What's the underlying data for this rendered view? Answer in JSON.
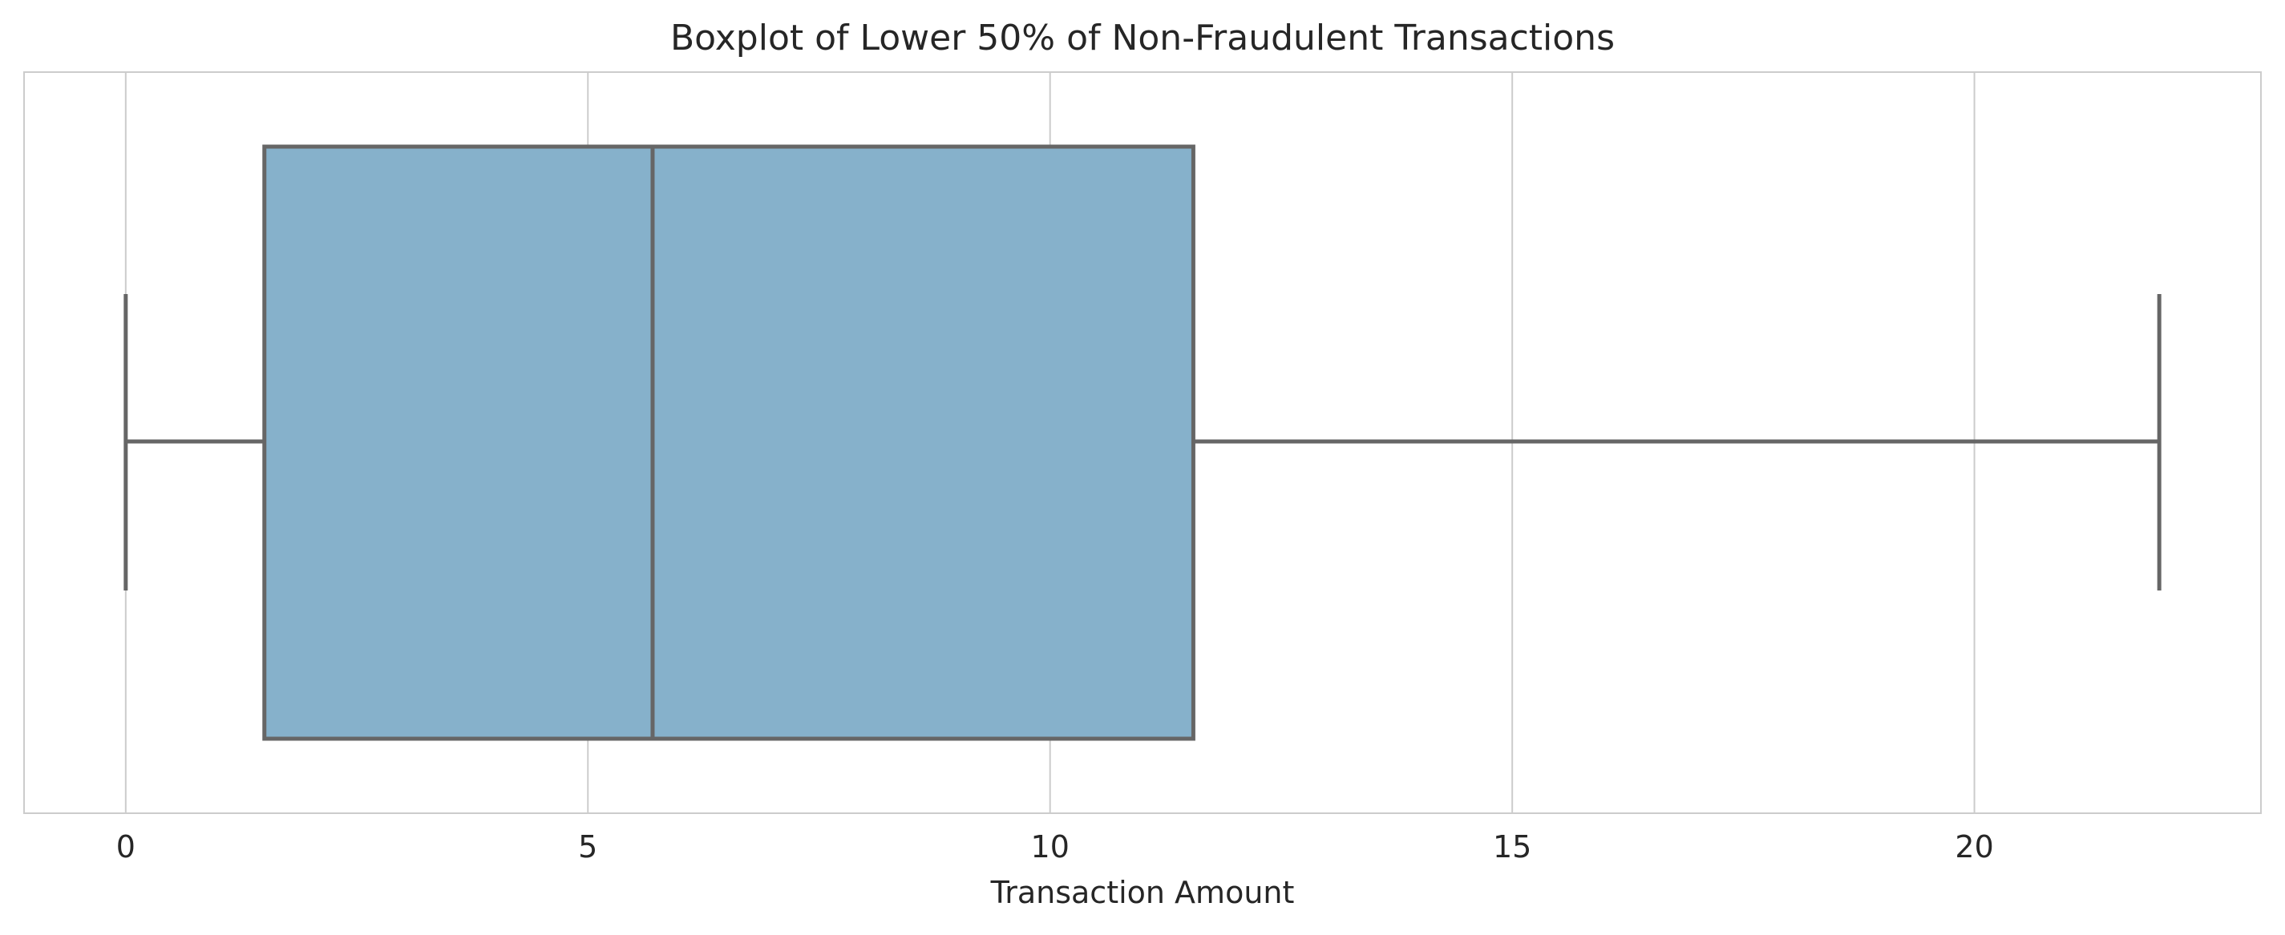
{
  "chart_data": {
    "type": "boxplot",
    "orientation": "horizontal",
    "title": "Boxplot of Lower 50% of Non-Fraudulent Transactions",
    "xlabel": "Transaction Amount",
    "ylabel": "",
    "xlim": [
      -1.1,
      23.1
    ],
    "xticks": [
      0,
      5,
      10,
      15,
      20
    ],
    "grid": "vertical",
    "box": {
      "whisker_low": 0,
      "q1": 1.5,
      "median": 5.7,
      "q3": 11.55,
      "whisker_high": 22.0
    },
    "colors": {
      "box_fill": "#86b1cb",
      "line": "#666666",
      "grid": "#cccccc",
      "frame": "#cccccc"
    }
  }
}
